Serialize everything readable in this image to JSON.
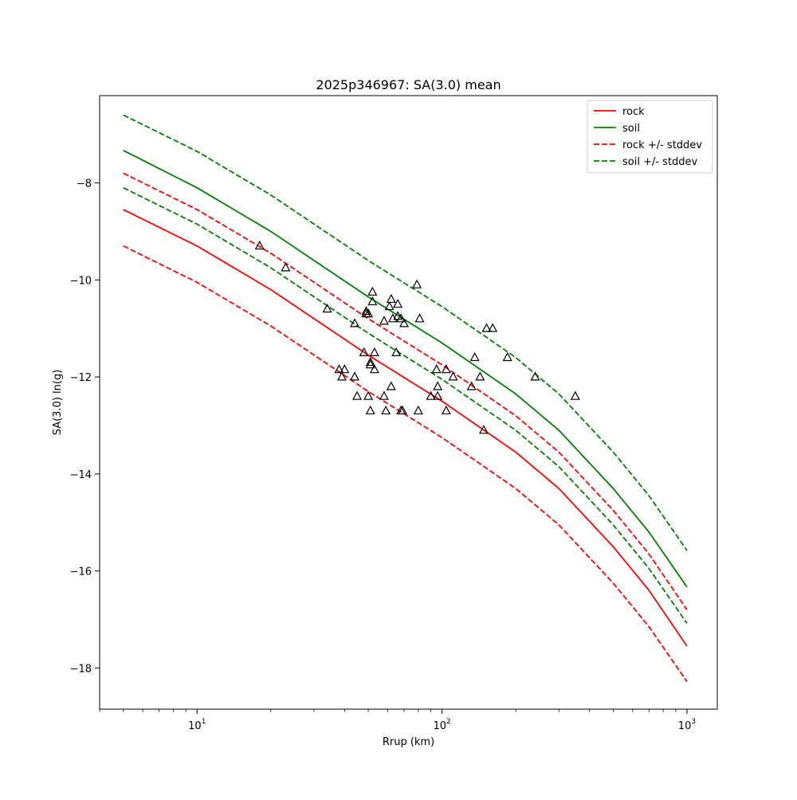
{
  "chart_data": {
    "type": "line",
    "title": "2025p346967: SA(3.0) mean",
    "xlabel": "Rrup (km)",
    "ylabel": "SA(3.0) ln(g)",
    "xscale": "log",
    "xlim": [
      4,
      1330
    ],
    "ylim": [
      -18.85,
      -6.2
    ],
    "x_major_ticks": [
      {
        "value": 10,
        "base": "10",
        "exp": "1"
      },
      {
        "value": 100,
        "base": "10",
        "exp": "2"
      },
      {
        "value": 1000,
        "base": "10",
        "exp": "3"
      }
    ],
    "y_ticks": [
      -18,
      -16,
      -14,
      -12,
      -10,
      -8
    ],
    "y_tick_labels": [
      "−18",
      "−16",
      "−14",
      "−12",
      "−10",
      "−8"
    ],
    "grid": false,
    "legend_position": "top-right",
    "series": [
      {
        "name": "rock",
        "color": "#ff0000",
        "style": "solid",
        "x": [
          5,
          10,
          20,
          50,
          100,
          200,
          300,
          500,
          700,
          1000
        ],
        "y": [
          -8.55,
          -9.3,
          -10.2,
          -11.55,
          -12.5,
          -13.55,
          -14.3,
          -15.5,
          -16.4,
          -17.55
        ]
      },
      {
        "name": "soil",
        "color": "#008000",
        "style": "solid",
        "x": [
          5,
          10,
          20,
          50,
          100,
          200,
          300,
          500,
          700,
          1000
        ],
        "y": [
          -7.33,
          -8.1,
          -9.0,
          -10.35,
          -11.3,
          -12.35,
          -13.1,
          -14.3,
          -15.2,
          -16.33
        ]
      },
      {
        "name": "rock +/- stddev",
        "color": "#ff0000",
        "style": "dashed",
        "x": [
          5,
          10,
          20,
          50,
          100,
          200,
          300,
          500,
          700,
          1000
        ],
        "y": [
          -7.8,
          -8.55,
          -9.45,
          -10.8,
          -11.75,
          -12.8,
          -13.55,
          -14.75,
          -15.65,
          -16.8
        ]
      },
      {
        "name": "",
        "color": "#ff0000",
        "style": "dashed",
        "x": [
          5,
          10,
          20,
          50,
          100,
          200,
          300,
          500,
          700,
          1000
        ],
        "y": [
          -9.3,
          -10.05,
          -10.95,
          -12.3,
          -13.25,
          -14.3,
          -15.05,
          -16.25,
          -17.15,
          -18.28
        ]
      },
      {
        "name": "soil +/- stddev",
        "color": "#008000",
        "style": "dashed",
        "x": [
          5,
          10,
          20,
          50,
          100,
          200,
          300,
          500,
          700,
          1000
        ],
        "y": [
          -6.6,
          -7.35,
          -8.25,
          -9.6,
          -10.55,
          -11.6,
          -12.35,
          -13.55,
          -14.45,
          -15.58
        ]
      },
      {
        "name": "",
        "color": "#008000",
        "style": "dashed",
        "x": [
          5,
          10,
          20,
          50,
          100,
          200,
          300,
          500,
          700,
          1000
        ],
        "y": [
          -8.1,
          -8.85,
          -9.75,
          -11.1,
          -12.05,
          -13.1,
          -13.85,
          -15.05,
          -15.95,
          -17.08
        ]
      }
    ],
    "observations": {
      "marker": "open-triangle",
      "color": "#000000",
      "points": [
        [
          18,
          -9.3
        ],
        [
          23,
          -9.75
        ],
        [
          34,
          -10.6
        ],
        [
          38,
          -11.85
        ],
        [
          39,
          -12.0
        ],
        [
          40,
          -11.85
        ],
        [
          44,
          -10.9
        ],
        [
          44,
          -12.0
        ],
        [
          45,
          -12.4
        ],
        [
          48,
          -11.5
        ],
        [
          49,
          -10.65
        ],
        [
          49,
          -10.7
        ],
        [
          50,
          -10.7
        ],
        [
          50,
          -12.4
        ],
        [
          51,
          -12.7
        ],
        [
          51,
          -11.7
        ],
        [
          51,
          -11.75
        ],
        [
          52,
          -10.25
        ],
        [
          52,
          -10.45
        ],
        [
          53,
          -11.85
        ],
        [
          53,
          -11.5
        ],
        [
          58,
          -10.85
        ],
        [
          58,
          -12.4
        ],
        [
          59,
          -12.7
        ],
        [
          61,
          -10.55
        ],
        [
          62,
          -10.4
        ],
        [
          62,
          -12.2
        ],
        [
          63,
          -10.8
        ],
        [
          65,
          -11.5
        ],
        [
          66,
          -10.5
        ],
        [
          66,
          -10.75
        ],
        [
          68,
          -10.8
        ],
        [
          68,
          -12.7
        ],
        [
          69,
          -12.7
        ],
        [
          70,
          -10.9
        ],
        [
          79,
          -10.1
        ],
        [
          80,
          -12.7
        ],
        [
          81,
          -10.8
        ],
        [
          90,
          -12.4
        ],
        [
          95,
          -11.85
        ],
        [
          96,
          -12.2
        ],
        [
          96,
          -12.4
        ],
        [
          104,
          -11.85
        ],
        [
          104,
          -12.7
        ],
        [
          111,
          -12.0
        ],
        [
          132,
          -12.2
        ],
        [
          136,
          -11.6
        ],
        [
          143,
          -12.0
        ],
        [
          148,
          -13.1
        ],
        [
          152,
          -11.0
        ],
        [
          161,
          -11.0
        ],
        [
          185,
          -11.6
        ],
        [
          240,
          -12.0
        ],
        [
          350,
          -12.4
        ]
      ]
    }
  }
}
